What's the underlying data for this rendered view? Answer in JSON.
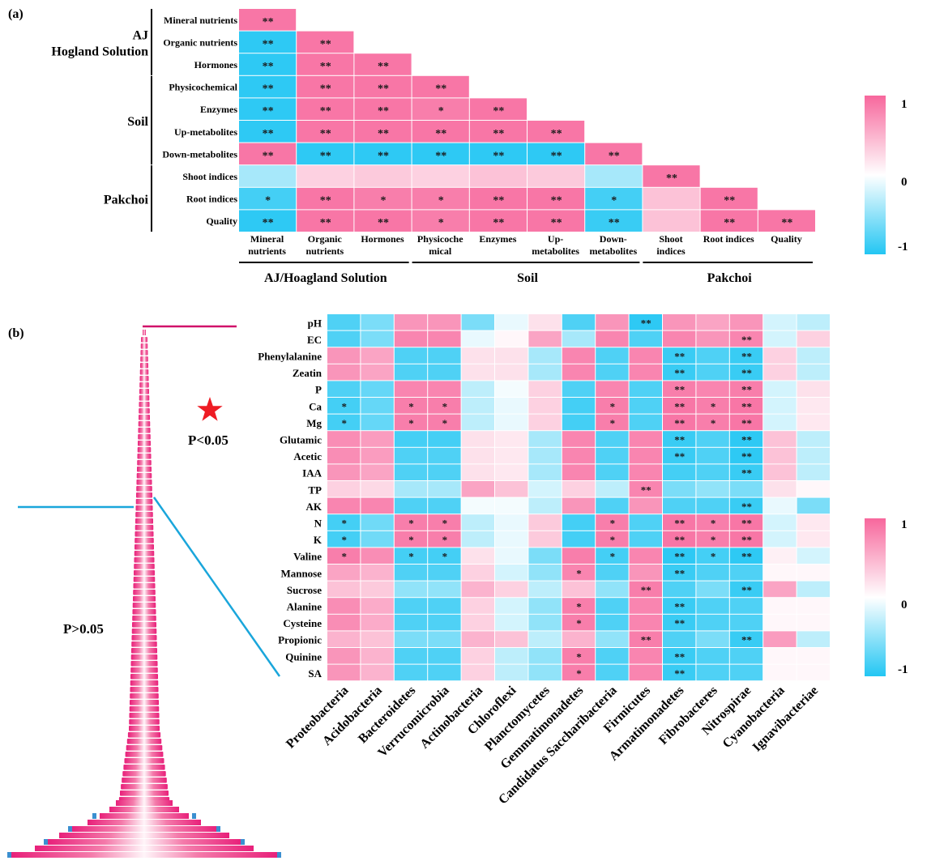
{
  "chart_data": [
    {
      "type": "heatmap",
      "panel_label": "(a)",
      "rows": [
        "Mineral nutrients",
        "Organic nutrients",
        "Hormones",
        "Physicochemical",
        "Enzymes",
        "Up-metabolites",
        "Down-metabolites",
        "Shoot indices",
        "Root indices",
        "Quality"
      ],
      "columns": [
        {
          "name": "Mineral nutrients",
          "lines": [
            "Mineral",
            "nutrients"
          ]
        },
        {
          "name": "Organic nutrients",
          "lines": [
            "Organic",
            "nutrients"
          ]
        },
        {
          "name": "Hormones",
          "lines": [
            "Hormones"
          ]
        },
        {
          "name": "Physicochemical",
          "lines": [
            "Physicoche",
            "mical"
          ]
        },
        {
          "name": "Enzymes",
          "lines": [
            "Enzymes"
          ]
        },
        {
          "name": "Up-metabolites",
          "lines": [
            "Up-",
            "metabolites"
          ]
        },
        {
          "name": "Down-metabolites",
          "lines": [
            "Down-",
            "metabolites"
          ]
        },
        {
          "name": "Shoot indices",
          "lines": [
            "Shoot",
            "indices"
          ]
        },
        {
          "name": "Root indices",
          "lines": [
            "Root indices"
          ]
        },
        {
          "name": "Quality",
          "lines": [
            "Quality"
          ]
        }
      ],
      "row_groups": [
        {
          "lines": [
            "AJ",
            "Hogland  Solution"
          ],
          "rows": [
            0,
            2
          ]
        },
        {
          "lines": [
            "Soil"
          ],
          "rows": [
            3,
            6
          ]
        },
        {
          "lines": [
            "Pakchoi"
          ],
          "rows": [
            7,
            9
          ]
        }
      ],
      "column_groups": [
        {
          "label": "AJ/Hoagland Solution",
          "cols": [
            0,
            2
          ]
        },
        {
          "label": "Soil",
          "cols": [
            3,
            6
          ]
        },
        {
          "label": "Pakchoi",
          "cols": [
            7,
            9
          ]
        }
      ],
      "values": [
        [
          0.9
        ],
        [
          -0.95,
          0.9
        ],
        [
          -0.95,
          0.9,
          0.9
        ],
        [
          -0.95,
          0.9,
          0.9,
          0.9
        ],
        [
          -0.95,
          0.9,
          0.9,
          0.85,
          0.9
        ],
        [
          -0.95,
          0.9,
          0.9,
          0.9,
          0.9,
          0.9
        ],
        [
          0.9,
          -0.95,
          -0.95,
          -0.95,
          -0.95,
          -0.95,
          0.9
        ],
        [
          -0.4,
          0.3,
          0.35,
          0.3,
          0.4,
          0.35,
          -0.4,
          0.9
        ],
        [
          -0.85,
          0.9,
          0.85,
          0.85,
          0.9,
          0.9,
          -0.85,
          0.4,
          0.9
        ],
        [
          -0.95,
          0.9,
          0.9,
          0.85,
          0.9,
          0.9,
          -0.9,
          0.4,
          0.9,
          0.9
        ]
      ],
      "significance": [
        [
          "**"
        ],
        [
          "**",
          "**"
        ],
        [
          "**",
          "**",
          "**"
        ],
        [
          "**",
          "**",
          "**",
          "**"
        ],
        [
          "**",
          "**",
          "**",
          "*",
          "**"
        ],
        [
          "**",
          "**",
          "**",
          "**",
          "**",
          "**"
        ],
        [
          "**",
          "**",
          "**",
          "**",
          "**",
          "**",
          "**"
        ],
        [
          "",
          "",
          "",
          "",
          "",
          "",
          "",
          "**"
        ],
        [
          "*",
          "**",
          "*",
          "*",
          "**",
          "**",
          "*",
          "",
          "**"
        ],
        [
          "**",
          "**",
          "**",
          "*",
          "**",
          "**",
          "**",
          "",
          "**",
          "**"
        ]
      ],
      "colorbar": {
        "max_label": "1",
        "mid_label": "0",
        "min_label": "-1",
        "range": [
          -1,
          1
        ]
      }
    },
    {
      "type": "heatmap",
      "panel_label": "(b)",
      "rows": [
        "pH",
        "EC",
        "Phenylalanine",
        "Zeatin",
        "P",
        "Ca",
        "Mg",
        "Glutamic",
        "Acetic",
        "IAA",
        "TP",
        "AK",
        "N",
        "K",
        "Valine",
        "Mannose",
        "Sucrose",
        "Alanine",
        "Cysteine",
        "Propionic",
        "Quinine",
        "SA"
      ],
      "columns": [
        "Proteobacteria",
        "Acidobacteria",
        "Bacteroidetes",
        "Verrucomicrobia",
        "Actinobacteria",
        "Chloroflexi",
        "Planctomycetes",
        "Gemmatimonadetes",
        "Candidatus Saccharibacteria",
        "Firmicutes",
        "Armatimonadetes",
        "Fibrobacteres",
        "Nitrospirae",
        "Cyanobacteria",
        "Ignavibacteriae"
      ],
      "values": [
        [
          -0.8,
          -0.6,
          0.7,
          0.7,
          -0.6,
          -0.1,
          0.2,
          -0.8,
          0.7,
          -0.95,
          0.7,
          0.6,
          0.7,
          -0.2,
          -0.3
        ],
        [
          -0.8,
          -0.6,
          0.8,
          0.8,
          -0.1,
          0.05,
          0.6,
          -0.4,
          0.8,
          -0.8,
          0.8,
          0.7,
          0.8,
          -0.2,
          0.3
        ],
        [
          0.7,
          0.6,
          -0.8,
          -0.8,
          0.2,
          0.2,
          -0.4,
          0.8,
          -0.8,
          0.8,
          -0.9,
          -0.8,
          -0.9,
          0.3,
          -0.3
        ],
        [
          0.7,
          0.6,
          -0.8,
          -0.8,
          0.2,
          0.2,
          -0.4,
          0.8,
          -0.8,
          0.8,
          -0.9,
          -0.8,
          -0.9,
          0.3,
          -0.3
        ],
        [
          -0.8,
          -0.7,
          0.8,
          0.8,
          -0.3,
          -0.05,
          0.3,
          -0.8,
          0.8,
          -0.8,
          0.85,
          0.8,
          0.85,
          -0.2,
          0.2
        ],
        [
          -0.85,
          -0.7,
          0.85,
          0.85,
          -0.3,
          -0.1,
          0.3,
          -0.85,
          0.85,
          -0.8,
          0.9,
          0.85,
          0.9,
          -0.2,
          0.15
        ],
        [
          -0.85,
          -0.7,
          0.85,
          0.85,
          -0.3,
          -0.1,
          0.3,
          -0.85,
          0.85,
          -0.8,
          0.9,
          0.85,
          0.9,
          -0.2,
          0.15
        ],
        [
          0.75,
          0.65,
          -0.85,
          -0.85,
          0.2,
          0.15,
          -0.4,
          0.8,
          -0.8,
          0.8,
          -0.9,
          -0.8,
          -0.95,
          0.4,
          -0.3
        ],
        [
          0.75,
          0.65,
          -0.8,
          -0.8,
          0.2,
          0.15,
          -0.4,
          0.8,
          -0.8,
          0.8,
          -0.9,
          -0.8,
          -0.95,
          0.4,
          -0.3
        ],
        [
          0.7,
          0.6,
          -0.8,
          -0.8,
          0.2,
          0.15,
          -0.4,
          0.8,
          -0.8,
          0.8,
          -0.85,
          -0.8,
          -0.9,
          0.4,
          -0.3
        ],
        [
          0.3,
          0.25,
          -0.4,
          -0.4,
          0.6,
          0.4,
          -0.2,
          0.3,
          -0.3,
          0.8,
          -0.6,
          -0.5,
          -0.6,
          0.2,
          0.05
        ],
        [
          0.8,
          0.8,
          -0.8,
          -0.8,
          -0.05,
          -0.05,
          -0.3,
          0.7,
          -0.8,
          0.7,
          -0.8,
          -0.8,
          -0.9,
          -0.1,
          -0.6
        ],
        [
          -0.85,
          -0.65,
          0.85,
          0.85,
          -0.3,
          -0.1,
          0.35,
          -0.85,
          0.85,
          -0.8,
          0.9,
          0.85,
          0.9,
          -0.2,
          0.15
        ],
        [
          -0.85,
          -0.65,
          0.85,
          0.85,
          -0.3,
          -0.1,
          0.35,
          -0.85,
          0.85,
          -0.8,
          0.9,
          0.85,
          0.9,
          -0.2,
          0.15
        ],
        [
          0.85,
          0.75,
          -0.85,
          -0.85,
          0.2,
          -0.1,
          -0.6,
          0.85,
          -0.85,
          0.8,
          -0.95,
          -0.85,
          -0.95,
          0.1,
          -0.2
        ],
        [
          0.6,
          0.5,
          -0.8,
          -0.8,
          0.3,
          -0.2,
          -0.5,
          0.8,
          -0.8,
          0.7,
          -0.9,
          -0.8,
          -0.8,
          0.05,
          0.05
        ],
        [
          0.4,
          0.35,
          -0.5,
          -0.5,
          0.5,
          0.3,
          -0.3,
          0.4,
          -0.5,
          0.85,
          -0.8,
          -0.6,
          -0.9,
          0.6,
          -0.3
        ],
        [
          0.75,
          0.55,
          -0.8,
          -0.8,
          0.3,
          -0.2,
          -0.5,
          0.85,
          -0.8,
          0.8,
          -0.9,
          -0.8,
          -0.8,
          0.05,
          0.05
        ],
        [
          0.75,
          0.55,
          -0.8,
          -0.8,
          0.3,
          -0.2,
          -0.5,
          0.85,
          -0.8,
          0.8,
          -0.9,
          -0.8,
          -0.8,
          0.05,
          0.05
        ],
        [
          0.5,
          0.4,
          -0.6,
          -0.6,
          0.5,
          0.4,
          -0.3,
          0.5,
          -0.5,
          0.85,
          -0.8,
          -0.6,
          -0.9,
          0.65,
          -0.3
        ],
        [
          0.7,
          0.5,
          -0.8,
          -0.8,
          0.3,
          -0.3,
          -0.5,
          0.85,
          -0.8,
          0.8,
          -0.9,
          -0.8,
          -0.8,
          0.05,
          0.05
        ],
        [
          0.7,
          0.5,
          -0.8,
          -0.8,
          0.3,
          -0.3,
          -0.5,
          0.85,
          -0.8,
          0.8,
          -0.9,
          -0.8,
          -0.8,
          0.05,
          0.05
        ]
      ],
      "significance": [
        [
          "",
          "",
          "",
          "",
          "",
          "",
          "",
          "",
          "",
          "**",
          "",
          "",
          "",
          "",
          ""
        ],
        [
          "",
          "",
          "",
          "",
          "",
          "",
          "",
          "",
          "",
          "",
          "",
          "",
          "**",
          "",
          ""
        ],
        [
          "",
          "",
          "",
          "",
          "",
          "",
          "",
          "",
          "",
          "",
          "**",
          "",
          "**",
          "",
          ""
        ],
        [
          "",
          "",
          "",
          "",
          "",
          "",
          "",
          "",
          "",
          "",
          "**",
          "",
          "**",
          "",
          ""
        ],
        [
          "",
          "",
          "",
          "",
          "",
          "",
          "",
          "",
          "",
          "",
          "**",
          "",
          "**",
          "",
          ""
        ],
        [
          "*",
          "",
          "*",
          "*",
          "",
          "",
          "",
          "",
          "*",
          "",
          "**",
          "*",
          "**",
          "",
          ""
        ],
        [
          "*",
          "",
          "*",
          "*",
          "",
          "",
          "",
          "",
          "*",
          "",
          "**",
          "*",
          "**",
          "",
          ""
        ],
        [
          "",
          "",
          "",
          "",
          "",
          "",
          "",
          "",
          "",
          "",
          "**",
          "",
          "**",
          "",
          ""
        ],
        [
          "",
          "",
          "",
          "",
          "",
          "",
          "",
          "",
          "",
          "",
          "**",
          "",
          "**",
          "",
          ""
        ],
        [
          "",
          "",
          "",
          "",
          "",
          "",
          "",
          "",
          "",
          "",
          "",
          "",
          "**",
          "",
          ""
        ],
        [
          "",
          "",
          "",
          "",
          "",
          "",
          "",
          "",
          "",
          "**",
          "",
          "",
          "",
          "",
          ""
        ],
        [
          "",
          "",
          "",
          "",
          "",
          "",
          "",
          "",
          "",
          "",
          "",
          "",
          "**",
          "",
          ""
        ],
        [
          "*",
          "",
          "*",
          "*",
          "",
          "",
          "",
          "",
          "*",
          "",
          "**",
          "*",
          "**",
          "",
          ""
        ],
        [
          "*",
          "",
          "*",
          "*",
          "",
          "",
          "",
          "",
          "*",
          "",
          "**",
          "*",
          "**",
          "",
          ""
        ],
        [
          "*",
          "",
          "*",
          "*",
          "",
          "",
          "",
          "",
          "*",
          "",
          "**",
          "*",
          "**",
          "",
          ""
        ],
        [
          "",
          "",
          "",
          "",
          "",
          "",
          "",
          "*",
          "",
          "",
          "**",
          "",
          "",
          "",
          ""
        ],
        [
          "",
          "",
          "",
          "",
          "",
          "",
          "",
          "",
          "",
          "**",
          "",
          "",
          "**",
          "",
          ""
        ],
        [
          "",
          "",
          "",
          "",
          "",
          "",
          "",
          "*",
          "",
          "",
          "**",
          "",
          "",
          "",
          ""
        ],
        [
          "",
          "",
          "",
          "",
          "",
          "",
          "",
          "*",
          "",
          "",
          "**",
          "",
          "",
          "",
          ""
        ],
        [
          "",
          "",
          "",
          "",
          "",
          "",
          "",
          "",
          "",
          "**",
          "",
          "",
          "**",
          "",
          ""
        ],
        [
          "",
          "",
          "",
          "",
          "",
          "",
          "",
          "*",
          "",
          "",
          "**",
          "",
          "",
          "",
          ""
        ],
        [
          "",
          "",
          "",
          "",
          "",
          "",
          "",
          "*",
          "",
          "",
          "**",
          "",
          "",
          "",
          ""
        ]
      ],
      "annotations": {
        "significant": "P<0.05",
        "not_significant": "P>0.05"
      },
      "colorbar": {
        "max_label": "1",
        "mid_label": "0",
        "min_label": "-1",
        "range": [
          -1,
          1
        ]
      }
    }
  ],
  "colors": {
    "positive": "#f7679c",
    "neutral": "#ffffff",
    "negative": "#23c6f3",
    "line": "#000000",
    "marker": "#ee1c24",
    "highlight_line": "#d0126a",
    "connector": "#1aa6db"
  }
}
